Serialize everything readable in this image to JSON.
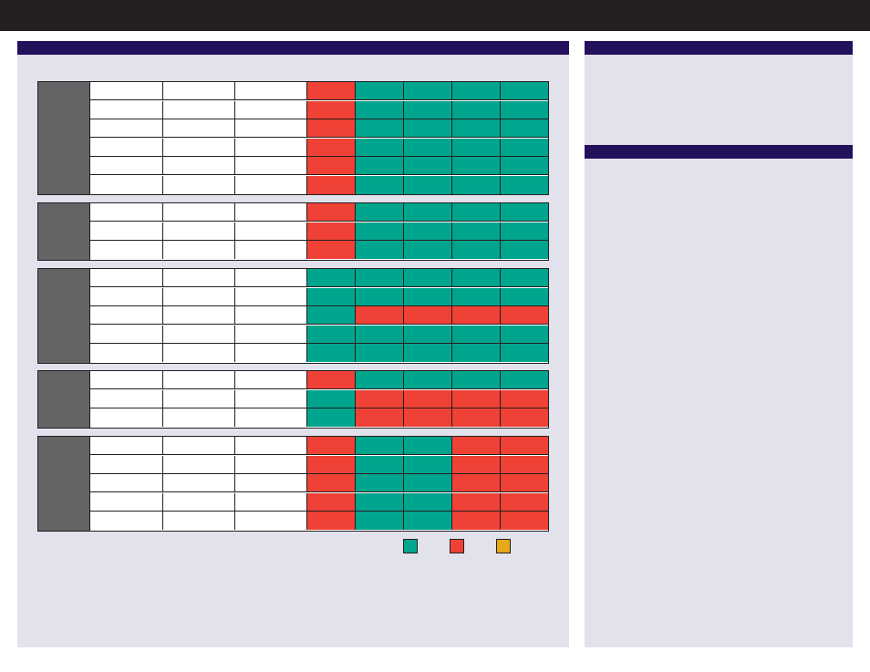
{
  "header": {
    "title": ""
  },
  "main_panel": {
    "title": ""
  },
  "side_panel": {
    "section_1": {
      "title": "",
      "text": ""
    },
    "section_2": {
      "title": "",
      "text": ""
    }
  },
  "colors": {
    "pass": "#00a58d",
    "fail": "#ef4136",
    "warn": "#e6a817",
    "group_label_bg": "#636466",
    "header_bg": "#24115c",
    "panel_bg": "#e2e2ed",
    "topbar_bg": "#231f20"
  },
  "legend": [
    {
      "status": "pass",
      "label": ""
    },
    {
      "status": "fail",
      "label": ""
    },
    {
      "status": "warn",
      "label": ""
    }
  ],
  "groups": [
    {
      "label": "",
      "rows": [
        {
          "cols": [
            "",
            "",
            ""
          ],
          "status": [
            "fail",
            "pass",
            "pass",
            "pass",
            "pass"
          ]
        },
        {
          "cols": [
            "",
            "",
            ""
          ],
          "status": [
            "fail",
            "pass",
            "pass",
            "pass",
            "pass"
          ]
        },
        {
          "cols": [
            "",
            "",
            ""
          ],
          "status": [
            "fail",
            "pass",
            "pass",
            "pass",
            "pass"
          ]
        },
        {
          "cols": [
            "",
            "",
            ""
          ],
          "status": [
            "fail",
            "pass",
            "pass",
            "pass",
            "pass"
          ]
        },
        {
          "cols": [
            "",
            "",
            ""
          ],
          "status": [
            "fail",
            "pass",
            "pass",
            "pass",
            "pass"
          ]
        },
        {
          "cols": [
            "",
            "",
            ""
          ],
          "status": [
            "fail",
            "pass",
            "pass",
            "pass",
            "pass"
          ]
        }
      ]
    },
    {
      "label": "",
      "rows": [
        {
          "cols": [
            "",
            "",
            ""
          ],
          "status": [
            "fail",
            "pass",
            "pass",
            "pass",
            "pass"
          ]
        },
        {
          "cols": [
            "",
            "",
            ""
          ],
          "status": [
            "fail",
            "pass",
            "pass",
            "pass",
            "pass"
          ]
        },
        {
          "cols": [
            "",
            "",
            ""
          ],
          "status": [
            "fail",
            "pass",
            "pass",
            "pass",
            "pass"
          ]
        }
      ]
    },
    {
      "label": "",
      "rows": [
        {
          "cols": [
            "",
            "",
            ""
          ],
          "status": [
            "pass",
            "pass",
            "pass",
            "pass",
            "pass"
          ]
        },
        {
          "cols": [
            "",
            "",
            ""
          ],
          "status": [
            "pass",
            "pass",
            "pass",
            "pass",
            "pass"
          ]
        },
        {
          "cols": [
            "",
            "",
            ""
          ],
          "status": [
            "pass",
            "fail",
            "fail",
            "fail",
            "fail"
          ]
        },
        {
          "cols": [
            "",
            "",
            ""
          ],
          "status": [
            "pass",
            "pass",
            "pass",
            "pass",
            "pass"
          ]
        },
        {
          "cols": [
            "",
            "",
            ""
          ],
          "status": [
            "pass",
            "pass",
            "pass",
            "pass",
            "pass"
          ]
        }
      ]
    },
    {
      "label": "",
      "rows": [
        {
          "cols": [
            "",
            "",
            ""
          ],
          "status": [
            "fail",
            "pass",
            "pass",
            "pass",
            "pass"
          ]
        },
        {
          "cols": [
            "",
            "",
            ""
          ],
          "status": [
            "pass",
            "fail",
            "fail",
            "fail",
            "fail"
          ]
        },
        {
          "cols": [
            "",
            "",
            ""
          ],
          "status": [
            "pass",
            "fail",
            "fail",
            "fail",
            "fail"
          ]
        }
      ]
    },
    {
      "label": "",
      "rows": [
        {
          "cols": [
            "",
            "",
            ""
          ],
          "status": [
            "fail",
            "pass",
            "pass",
            "fail",
            "fail"
          ]
        },
        {
          "cols": [
            "",
            "",
            ""
          ],
          "status": [
            "fail",
            "pass",
            "pass",
            "fail",
            "fail"
          ]
        },
        {
          "cols": [
            "",
            "",
            ""
          ],
          "status": [
            "fail",
            "pass",
            "pass",
            "fail",
            "fail"
          ]
        },
        {
          "cols": [
            "",
            "",
            ""
          ],
          "status": [
            "fail",
            "pass",
            "pass",
            "fail",
            "fail"
          ]
        },
        {
          "cols": [
            "",
            "",
            ""
          ],
          "status": [
            "fail",
            "pass",
            "pass",
            "fail",
            "fail"
          ]
        }
      ]
    }
  ]
}
